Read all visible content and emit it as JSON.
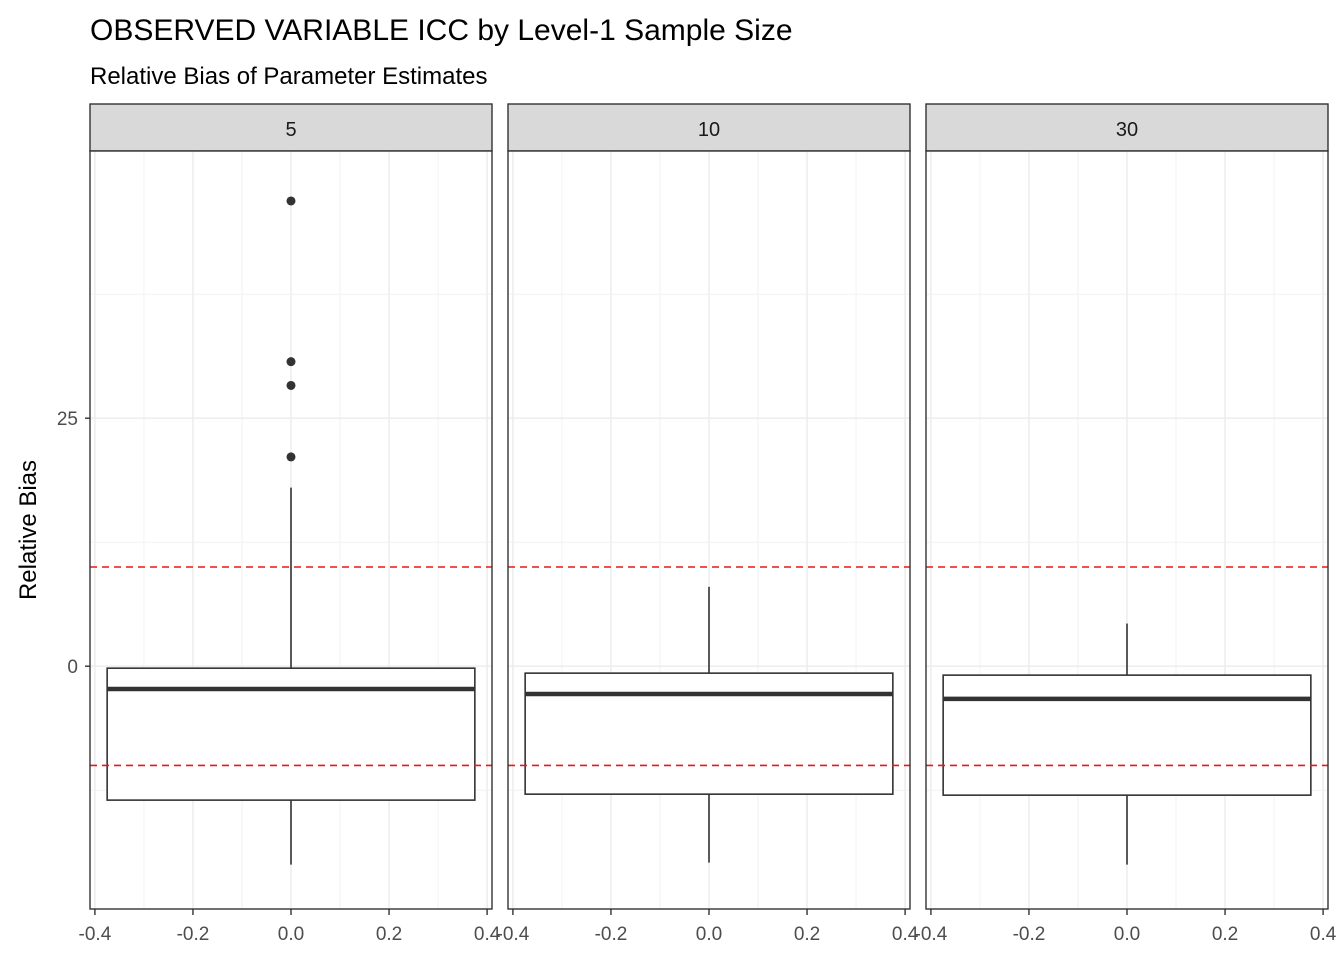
{
  "chart_data": {
    "type": "boxplot",
    "title": "OBSERVED VARIABLE ICC by Level-1 Sample Size",
    "subtitle": "Relative Bias of Parameter Estimates",
    "ylabel": "Relative Bias",
    "xlabel": "",
    "facet_labels": [
      "5",
      "10",
      "30"
    ],
    "x_ticks": [
      "-0.4",
      "-0.2",
      "0.0",
      "0.2",
      "0.4"
    ],
    "x_tick_values": [
      -0.4,
      -0.2,
      0.0,
      0.2,
      0.4
    ],
    "xlim": [
      -0.41,
      0.41
    ],
    "y_ticks": [
      "0",
      "25"
    ],
    "y_tick_values": [
      0,
      25
    ],
    "ylim": [
      -23.5,
      50
    ],
    "reference_lines": [
      10,
      -10
    ],
    "reference_line_color": "#e41a1c",
    "grid": true,
    "box_x_range": [
      -0.375,
      0.375
    ],
    "panels": [
      {
        "facet": "5",
        "min": -20,
        "q1": -13.5,
        "median": -2.3,
        "q3": -0.2,
        "max": 18,
        "outliers": [
          21.1,
          28.3,
          30.7,
          46.9
        ]
      },
      {
        "facet": "10",
        "min": -19.8,
        "q1": -12.9,
        "median": -2.8,
        "q3": -0.7,
        "max": 8,
        "outliers": []
      },
      {
        "facet": "30",
        "min": -20,
        "q1": -13,
        "median": -3.3,
        "q3": -0.9,
        "max": 4.3,
        "outliers": []
      }
    ]
  }
}
